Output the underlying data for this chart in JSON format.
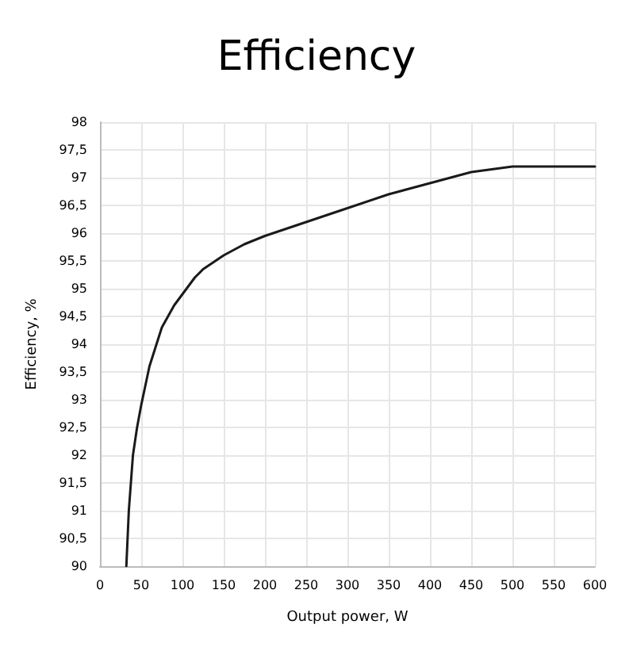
{
  "chart_data": {
    "type": "line",
    "title": "Efficiency",
    "xlabel": "Output power, W",
    "ylabel": "Efficiency, %",
    "series": [
      {
        "color": "#1a1a1a",
        "x": [
          32,
          35,
          40,
          45,
          50,
          60,
          75,
          90,
          100,
          115,
          125,
          140,
          150,
          175,
          200,
          250,
          300,
          350,
          400,
          450,
          500,
          550,
          600
        ],
        "values": [
          90,
          91,
          92,
          92.5,
          92.9,
          93.6,
          94.3,
          94.7,
          94.9,
          95.2,
          95.35,
          95.5,
          95.6,
          95.8,
          95.95,
          96.2,
          96.45,
          96.7,
          96.9,
          97.1,
          97.2,
          97.2,
          97.2
        ]
      }
    ],
    "xlim": [
      0,
      600
    ],
    "xticks": [
      0,
      50,
      100,
      150,
      200,
      250,
      300,
      350,
      400,
      450,
      500,
      550,
      600
    ],
    "ylim": [
      90,
      98
    ],
    "yticks": [
      90,
      {
        "value": 90.5,
        "label": "90,5"
      },
      91,
      {
        "value": 91.5,
        "label": "91,5"
      },
      92,
      {
        "value": 92.5,
        "label": "92,5"
      },
      93,
      {
        "value": 93.5,
        "label": "93,5"
      },
      94,
      {
        "value": 94.5,
        "label": "94,5"
      },
      95,
      {
        "value": 95.5,
        "label": "95,5"
      },
      96,
      {
        "value": 96.5,
        "label": "96,5"
      },
      97,
      {
        "value": 97.5,
        "label": "97,5"
      },
      98
    ],
    "grid": true,
    "marker": "none",
    "line_style": "solid"
  }
}
